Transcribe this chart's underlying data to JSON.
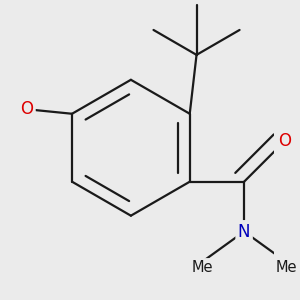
{
  "background_color": "#ebebeb",
  "bond_color": "#1a1a1a",
  "bond_width": 1.6,
  "atom_colors": {
    "O": "#dd0000",
    "N": "#0000bb",
    "C": "#1a1a1a"
  },
  "font_size_atom": 12,
  "font_size_methyl": 10.5
}
